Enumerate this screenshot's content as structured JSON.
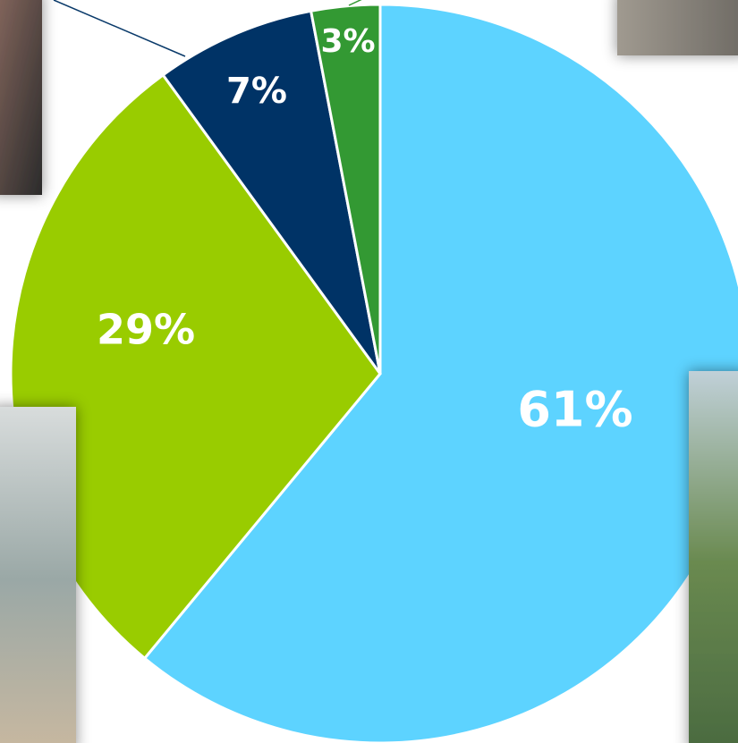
{
  "chart_data": {
    "type": "pie",
    "categories": [
      null,
      null,
      null,
      null
    ],
    "values": [
      61,
      29,
      7,
      3
    ],
    "value_labels": [
      "61%",
      "29%",
      "7%",
      "3%"
    ],
    "colors": [
      "#5dd3ff",
      "#99cc00",
      "#003366",
      "#339933"
    ]
  }
}
